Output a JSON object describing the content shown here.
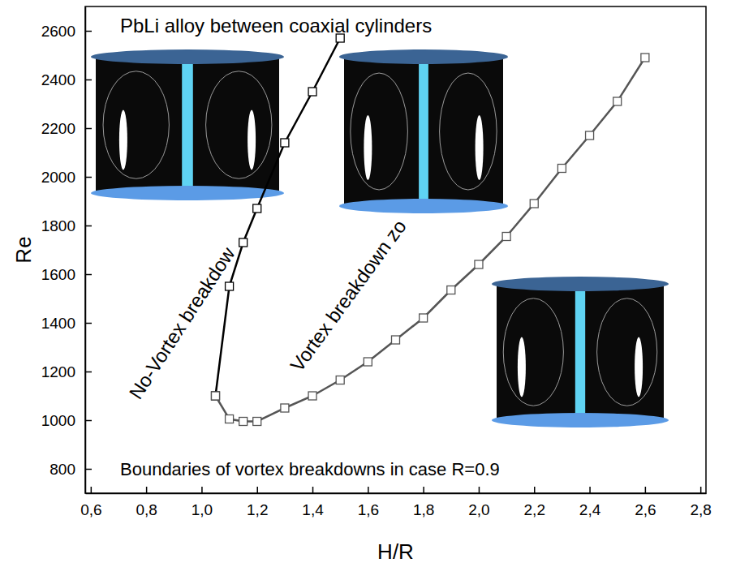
{
  "chart_data": {
    "type": "line",
    "title": "PbLi alloy between coaxial cylinders",
    "subtitle": "Boundaries of vortex breakdowns in case R=0.9",
    "x_label": "H/R",
    "y_label": "Re",
    "annotations": [
      "No-Vortex breakdow",
      "Vortex breakdown zo"
    ],
    "xlim": [
      0.58,
      2.82
    ],
    "ylim": [
      700,
      2700
    ],
    "xticks": [
      {
        "value": 0.6,
        "label": "0,6"
      },
      {
        "value": 0.8,
        "label": "0,8"
      },
      {
        "value": 1.0,
        "label": "1,0"
      },
      {
        "value": 1.2,
        "label": "1,2"
      },
      {
        "value": 1.4,
        "label": "1,4"
      },
      {
        "value": 1.6,
        "label": "1,6"
      },
      {
        "value": 1.8,
        "label": "1,8"
      },
      {
        "value": 2.0,
        "label": "2,0"
      },
      {
        "value": 2.2,
        "label": "2,2"
      },
      {
        "value": 2.4,
        "label": "2,4"
      },
      {
        "value": 2.6,
        "label": "2,6"
      },
      {
        "value": 2.8,
        "label": "2,8"
      }
    ],
    "yticks": [
      800,
      1000,
      1200,
      1400,
      1600,
      1800,
      2000,
      2200,
      2400,
      2600
    ],
    "grid": false,
    "series": [
      {
        "color": "#000000",
        "marker": "square",
        "line_style": "solid",
        "x": [
          1.05,
          1.1,
          1.15,
          1.2,
          1.3,
          1.4,
          1.5
        ],
        "values": [
          1100,
          1550,
          1730,
          1870,
          2140,
          2350,
          2570
        ]
      },
      {
        "color": "#555555",
        "marker": "square",
        "line_style": "solid",
        "x": [
          1.05,
          1.1,
          1.15,
          1.2,
          1.3,
          1.4,
          1.5,
          1.6,
          1.7,
          1.8,
          1.9,
          2.0,
          2.1,
          2.2,
          2.3,
          2.4,
          2.5,
          2.6
        ],
        "values": [
          1100,
          1005,
          995,
          995,
          1050,
          1100,
          1165,
          1240,
          1330,
          1420,
          1535,
          1640,
          1755,
          1890,
          2035,
          2170,
          2310,
          2490
        ]
      }
    ]
  }
}
